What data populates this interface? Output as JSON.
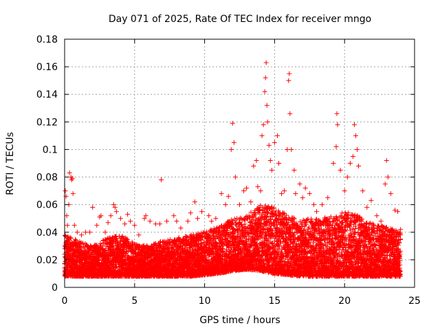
{
  "chart_data": {
    "type": "scatter",
    "title": "Day 071 of 2025, Rate Of TEC Index for receiver mngo",
    "xlabel": "GPS time / hours",
    "ylabel": "ROTI / TECUs",
    "xlim": [
      0,
      25
    ],
    "ylim": [
      0,
      0.18
    ],
    "xticks": [
      0,
      5,
      10,
      15,
      20,
      25
    ],
    "xtick_labels": [
      "0",
      "5",
      "10",
      "15",
      "20",
      "25"
    ],
    "yticks": [
      0,
      0.02,
      0.04,
      0.06,
      0.08,
      0.1,
      0.12,
      0.14,
      0.16,
      0.18
    ],
    "ytick_labels": [
      "0",
      "0.02",
      "0.04",
      "0.06",
      "0.08",
      "0.1",
      "0.12",
      "0.14",
      "0.16",
      "0.18"
    ],
    "grid": true,
    "marker": "+",
    "colors": {
      "marker": "#ff0000",
      "grid": "#a0a0a0"
    },
    "series": [
      {
        "name": "ROTI",
        "points": [
          [
            0.05,
            0.07
          ],
          [
            0.1,
            0.066
          ],
          [
            0.15,
            0.052
          ],
          [
            0.2,
            0.045
          ],
          [
            0.3,
            0.06
          ],
          [
            0.35,
            0.083
          ],
          [
            0.45,
            0.08
          ],
          [
            0.5,
            0.078
          ],
          [
            0.55,
            0.079
          ],
          [
            0.6,
            0.068
          ],
          [
            0.7,
            0.045
          ],
          [
            0.9,
            0.04
          ],
          [
            1.2,
            0.038
          ],
          [
            1.5,
            0.04
          ],
          [
            1.8,
            0.04
          ],
          [
            2.0,
            0.058
          ],
          [
            2.3,
            0.045
          ],
          [
            2.5,
            0.051
          ],
          [
            2.6,
            0.052
          ],
          [
            2.9,
            0.04
          ],
          [
            3.1,
            0.047
          ],
          [
            3.3,
            0.052
          ],
          [
            3.5,
            0.06
          ],
          [
            3.6,
            0.058
          ],
          [
            3.7,
            0.055
          ],
          [
            4.0,
            0.05
          ],
          [
            4.3,
            0.046
          ],
          [
            4.5,
            0.053
          ],
          [
            4.7,
            0.048
          ],
          [
            5.0,
            0.045
          ],
          [
            5.3,
            0.038
          ],
          [
            5.7,
            0.05
          ],
          [
            5.8,
            0.052
          ],
          [
            6.1,
            0.048
          ],
          [
            6.5,
            0.046
          ],
          [
            6.8,
            0.046
          ],
          [
            6.9,
            0.078
          ],
          [
            7.3,
            0.048
          ],
          [
            7.8,
            0.052
          ],
          [
            8.0,
            0.048
          ],
          [
            8.3,
            0.043
          ],
          [
            8.8,
            0.048
          ],
          [
            9.0,
            0.054
          ],
          [
            9.3,
            0.062
          ],
          [
            9.5,
            0.05
          ],
          [
            9.8,
            0.055
          ],
          [
            10.3,
            0.052
          ],
          [
            10.5,
            0.048
          ],
          [
            10.8,
            0.05
          ],
          [
            11.2,
            0.068
          ],
          [
            11.5,
            0.06
          ],
          [
            11.7,
            0.066
          ],
          [
            11.9,
            0.1
          ],
          [
            12.0,
            0.119
          ],
          [
            12.1,
            0.105
          ],
          [
            12.2,
            0.08
          ],
          [
            12.5,
            0.06
          ],
          [
            12.8,
            0.07
          ],
          [
            13.0,
            0.072
          ],
          [
            13.3,
            0.062
          ],
          [
            13.5,
            0.088
          ],
          [
            13.7,
            0.092
          ],
          [
            13.8,
            0.073
          ],
          [
            14.0,
            0.07
          ],
          [
            14.1,
            0.11
          ],
          [
            14.2,
            0.118
          ],
          [
            14.3,
            0.142
          ],
          [
            14.35,
            0.152
          ],
          [
            14.4,
            0.163
          ],
          [
            14.45,
            0.132
          ],
          [
            14.5,
            0.12
          ],
          [
            14.6,
            0.103
          ],
          [
            14.7,
            0.092
          ],
          [
            14.8,
            0.085
          ],
          [
            15.0,
            0.105
          ],
          [
            15.2,
            0.11
          ],
          [
            15.3,
            0.09
          ],
          [
            15.5,
            0.068
          ],
          [
            15.7,
            0.07
          ],
          [
            15.9,
            0.1
          ],
          [
            16.0,
            0.15
          ],
          [
            16.05,
            0.155
          ],
          [
            16.1,
            0.126
          ],
          [
            16.2,
            0.1
          ],
          [
            16.4,
            0.085
          ],
          [
            16.5,
            0.068
          ],
          [
            16.8,
            0.075
          ],
          [
            17.0,
            0.065
          ],
          [
            17.2,
            0.072
          ],
          [
            17.5,
            0.068
          ],
          [
            17.8,
            0.06
          ],
          [
            18.0,
            0.055
          ],
          [
            18.4,
            0.06
          ],
          [
            18.8,
            0.065
          ],
          [
            19.2,
            0.09
          ],
          [
            19.4,
            0.102
          ],
          [
            19.45,
            0.126
          ],
          [
            19.5,
            0.118
          ],
          [
            19.7,
            0.085
          ],
          [
            20.0,
            0.07
          ],
          [
            20.2,
            0.08
          ],
          [
            20.4,
            0.09
          ],
          [
            20.6,
            0.095
          ],
          [
            20.7,
            0.118
          ],
          [
            20.8,
            0.11
          ],
          [
            20.9,
            0.1
          ],
          [
            21.0,
            0.088
          ],
          [
            21.3,
            0.07
          ],
          [
            21.6,
            0.058
          ],
          [
            21.9,
            0.063
          ],
          [
            22.3,
            0.052
          ],
          [
            22.6,
            0.048
          ],
          [
            22.9,
            0.075
          ],
          [
            23.0,
            0.092
          ],
          [
            23.1,
            0.08
          ],
          [
            23.3,
            0.068
          ],
          [
            23.6,
            0.056
          ],
          [
            23.8,
            0.055
          ],
          [
            24.0,
            0.042
          ]
        ]
      }
    ],
    "envelope": {
      "description_hours": [
        0,
        1,
        2,
        3,
        4,
        5,
        6,
        7,
        8,
        9,
        10,
        11,
        12,
        13,
        14,
        15,
        16,
        17,
        18,
        19,
        20,
        21,
        22,
        23,
        24
      ],
      "low": [
        0.008,
        0.008,
        0.008,
        0.008,
        0.008,
        0.008,
        0.008,
        0.008,
        0.008,
        0.008,
        0.009,
        0.01,
        0.012,
        0.013,
        0.012,
        0.01,
        0.009,
        0.008,
        0.008,
        0.008,
        0.008,
        0.008,
        0.008,
        0.008,
        0.008
      ],
      "high": [
        0.038,
        0.034,
        0.03,
        0.036,
        0.038,
        0.032,
        0.03,
        0.034,
        0.036,
        0.038,
        0.04,
        0.044,
        0.05,
        0.052,
        0.06,
        0.058,
        0.052,
        0.05,
        0.05,
        0.052,
        0.055,
        0.052,
        0.046,
        0.044,
        0.04
      ]
    }
  }
}
